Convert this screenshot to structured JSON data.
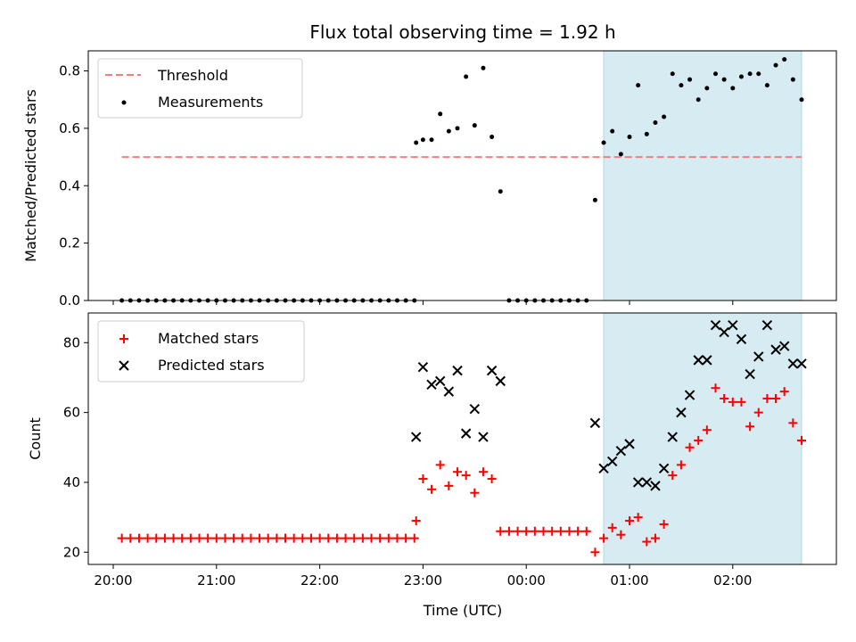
{
  "chart_data": {
    "title": "Flux total observing time = 1.92 h",
    "xlabel": "Time (UTC)",
    "x_ticks": [
      "20:00",
      "21:00",
      "22:00",
      "23:00",
      "00:00",
      "01:00",
      "02:00"
    ],
    "highlight_interval": [
      "00:45",
      "02:40"
    ],
    "colors": {
      "threshold": "#f08080",
      "measurements": "#000000",
      "matched": "#ff0000",
      "predicted": "#000000",
      "highlight": "#add8e6"
    },
    "panels": [
      {
        "type": "scatter",
        "ylabel": "Matched/Predicted stars",
        "ylim": [
          0,
          0.87
        ],
        "yticks": [
          "0.0",
          "0.2",
          "0.4",
          "0.6",
          "0.8"
        ],
        "legend_position": "upper-left",
        "threshold": {
          "name": "Threshold",
          "value": 0.5,
          "x_start": "20:05",
          "x_end": "02:40"
        },
        "measurements": {
          "name": "Measurements",
          "x": [
            "20:05",
            "20:10",
            "20:15",
            "20:20",
            "20:25",
            "20:30",
            "20:35",
            "20:40",
            "20:45",
            "20:50",
            "20:55",
            "21:00",
            "21:05",
            "21:10",
            "21:15",
            "21:20",
            "21:25",
            "21:30",
            "21:35",
            "21:40",
            "21:45",
            "21:50",
            "21:55",
            "22:00",
            "22:05",
            "22:10",
            "22:15",
            "22:20",
            "22:25",
            "22:30",
            "22:35",
            "22:40",
            "22:45",
            "22:50",
            "22:55",
            "22:56",
            "23:00",
            "23:05",
            "23:10",
            "23:15",
            "23:20",
            "23:25",
            "23:30",
            "23:35",
            "23:40",
            "23:45",
            "23:50",
            "23:55",
            "00:00",
            "00:05",
            "00:10",
            "00:15",
            "00:20",
            "00:25",
            "00:30",
            "00:35",
            "00:40",
            "00:45",
            "00:50",
            "00:55",
            "01:00",
            "01:05",
            "01:10",
            "01:15",
            "01:20",
            "01:25",
            "01:30",
            "01:35",
            "01:40",
            "01:45",
            "01:50",
            "01:55",
            "02:00",
            "02:05",
            "02:10",
            "02:15",
            "02:20",
            "02:25",
            "02:30",
            "02:35",
            "02:40"
          ],
          "y": [
            0,
            0,
            0,
            0,
            0,
            0,
            0,
            0,
            0,
            0,
            0,
            0,
            0,
            0,
            0,
            0,
            0,
            0,
            0,
            0,
            0,
            0,
            0,
            0,
            0,
            0,
            0,
            0,
            0,
            0,
            0,
            0,
            0,
            0,
            0,
            0.55,
            0.56,
            0.56,
            0.65,
            0.59,
            0.6,
            0.78,
            0.61,
            0.81,
            0.57,
            0.38,
            0,
            0,
            0,
            0,
            0,
            0,
            0,
            0,
            0,
            0,
            0.35,
            0.55,
            0.59,
            0.51,
            0.57,
            0.75,
            0.58,
            0.62,
            0.64,
            0.79,
            0.75,
            0.77,
            0.7,
            0.74,
            0.79,
            0.77,
            0.74,
            0.78,
            0.79,
            0.79,
            0.75,
            0.82,
            0.84,
            0.77,
            0.7
          ]
        }
      },
      {
        "type": "scatter",
        "ylabel": "Count",
        "ylim": [
          16.5,
          88.5
        ],
        "yticks": [
          "20",
          "40",
          "60",
          "80"
        ],
        "legend_position": "upper-left",
        "series": [
          {
            "name": "Matched stars",
            "marker": "plus",
            "x": [
              "20:05",
              "20:10",
              "20:15",
              "20:20",
              "20:25",
              "20:30",
              "20:35",
              "20:40",
              "20:45",
              "20:50",
              "20:55",
              "21:00",
              "21:05",
              "21:10",
              "21:15",
              "21:20",
              "21:25",
              "21:30",
              "21:35",
              "21:40",
              "21:45",
              "21:50",
              "21:55",
              "22:00",
              "22:05",
              "22:10",
              "22:15",
              "22:20",
              "22:25",
              "22:30",
              "22:35",
              "22:40",
              "22:45",
              "22:50",
              "22:55",
              "22:56",
              "23:00",
              "23:05",
              "23:10",
              "23:15",
              "23:20",
              "23:25",
              "23:30",
              "23:35",
              "23:40",
              "23:45",
              "23:50",
              "23:55",
              "00:00",
              "00:05",
              "00:10",
              "00:15",
              "00:20",
              "00:25",
              "00:30",
              "00:35",
              "00:40",
              "00:45",
              "00:50",
              "00:55",
              "01:00",
              "01:05",
              "01:10",
              "01:15",
              "01:20",
              "01:25",
              "01:30",
              "01:35",
              "01:40",
              "01:45",
              "01:50",
              "01:55",
              "02:00",
              "02:05",
              "02:10",
              "02:15",
              "02:20",
              "02:25",
              "02:30",
              "02:35",
              "02:40"
            ],
            "y": [
              24,
              24,
              24,
              24,
              24,
              24,
              24,
              24,
              24,
              24,
              24,
              24,
              24,
              24,
              24,
              24,
              24,
              24,
              24,
              24,
              24,
              24,
              24,
              24,
              24,
              24,
              24,
              24,
              24,
              24,
              24,
              24,
              24,
              24,
              24,
              29,
              41,
              38,
              45,
              39,
              43,
              42,
              37,
              43,
              41,
              26,
              26,
              26,
              26,
              26,
              26,
              26,
              26,
              26,
              26,
              26,
              20,
              24,
              27,
              25,
              29,
              30,
              23,
              24,
              28,
              42,
              45,
              50,
              52,
              55,
              67,
              64,
              63,
              63,
              56,
              60,
              64,
              64,
              66,
              57,
              52
            ]
          },
          {
            "name": "Predicted stars",
            "marker": "x",
            "x": [
              "22:56",
              "23:00",
              "23:05",
              "23:10",
              "23:15",
              "23:20",
              "23:25",
              "23:30",
              "23:35",
              "23:40",
              "23:45",
              "00:40",
              "00:45",
              "00:50",
              "00:55",
              "01:00",
              "01:05",
              "01:10",
              "01:15",
              "01:20",
              "01:25",
              "01:30",
              "01:35",
              "01:40",
              "01:45",
              "01:50",
              "01:55",
              "02:00",
              "02:05",
              "02:10",
              "02:15",
              "02:20",
              "02:25",
              "02:30",
              "02:35",
              "02:40"
            ],
            "y": [
              53,
              73,
              68,
              69,
              66,
              72,
              54,
              61,
              53,
              72,
              69,
              57,
              44,
              46,
              49,
              51,
              40,
              40,
              39,
              44,
              53,
              60,
              65,
              75,
              75,
              85,
              83,
              85,
              81,
              71,
              76,
              85,
              78,
              79,
              74,
              74
            ]
          }
        ]
      }
    ]
  }
}
